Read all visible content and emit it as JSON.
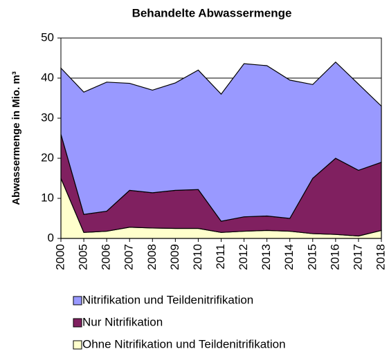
{
  "chart_data": {
    "type": "stacked_area",
    "title": "Behandelte Abwassermenge",
    "y_label": "Abwassermenge in Mio. m³",
    "categories": [
      "2000",
      "2005",
      "2006",
      "2007",
      "2008",
      "2009",
      "2010",
      "2011",
      "2012",
      "2013",
      "2014",
      "2015",
      "2016",
      "2017",
      "2018"
    ],
    "series": [
      {
        "name": "Ohne Nitrifikation und Teildenitrifikation",
        "color": "#ffffcc",
        "values": [
          15,
          1.5,
          1.8,
          2.8,
          2.6,
          2.5,
          2.5,
          1.5,
          1.8,
          2.0,
          1.8,
          1.2,
          1.0,
          0.6,
          2.0
        ]
      },
      {
        "name": "Nur Nitrifikation",
        "color": "#802060",
        "values": [
          11,
          4.5,
          5,
          9.2,
          8.8,
          9.5,
          9.7,
          2.8,
          3.6,
          3.6,
          3.2,
          13.8,
          19,
          16.4,
          17
        ]
      },
      {
        "name": "Nitrifikation und Teildenitrifikation",
        "color": "#9999ff",
        "values": [
          16.5,
          30.5,
          32.2,
          26.7,
          25.6,
          26.8,
          29.8,
          31.7,
          38.2,
          37.5,
          34.5,
          23.4,
          24,
          21.5,
          14
        ]
      }
    ],
    "ylim": [
      0,
      50
    ],
    "yticks": [
      0,
      10,
      20,
      30,
      40,
      50
    ],
    "grid": true
  }
}
